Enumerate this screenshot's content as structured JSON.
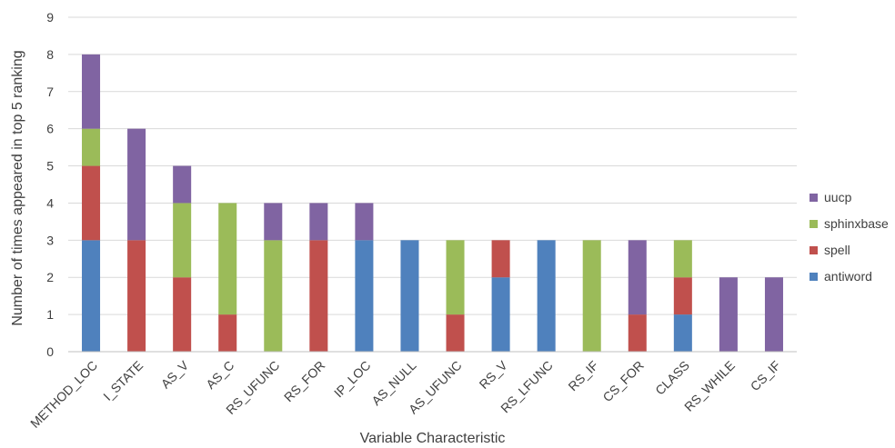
{
  "chart_data": {
    "type": "bar",
    "stacked": true,
    "xlabel": "Variable Characteristic",
    "ylabel": "Number of times appeared in top 5 ranking",
    "ylim": [
      0,
      9
    ],
    "yticks": [
      0,
      1,
      2,
      3,
      4,
      5,
      6,
      7,
      8,
      9
    ],
    "grid": true,
    "legend_position": "right",
    "categories": [
      "METHOD_LOC",
      "I_STATE",
      "AS_V",
      "AS_C",
      "RS_UFUNC",
      "RS_FOR",
      "IP_LOC",
      "AS_NULL",
      "AS_UFUNC",
      "RS_V",
      "RS_LFUNC",
      "RS_IF",
      "CS_FOR",
      "CLASS",
      "RS_WHILE",
      "CS_IF"
    ],
    "series": [
      {
        "name": "antiword",
        "color": "#4f81bd",
        "values": [
          3,
          0,
          0,
          0,
          0,
          0,
          3,
          3,
          0,
          2,
          3,
          0,
          0,
          1,
          0,
          0
        ]
      },
      {
        "name": "spell",
        "color": "#c0504d",
        "values": [
          2,
          3,
          2,
          1,
          0,
          3,
          0,
          0,
          1,
          1,
          0,
          0,
          1,
          1,
          0,
          0
        ]
      },
      {
        "name": "sphinxbase",
        "color": "#9bbb59",
        "values": [
          1,
          0,
          2,
          3,
          3,
          0,
          0,
          0,
          2,
          0,
          0,
          3,
          0,
          1,
          0,
          0
        ]
      },
      {
        "name": "uucp",
        "color": "#8064a2",
        "values": [
          2,
          3,
          1,
          0,
          1,
          1,
          1,
          0,
          0,
          0,
          0,
          0,
          2,
          0,
          2,
          2
        ]
      }
    ],
    "legend_order": [
      "uucp",
      "sphinxbase",
      "spell",
      "antiword"
    ]
  }
}
